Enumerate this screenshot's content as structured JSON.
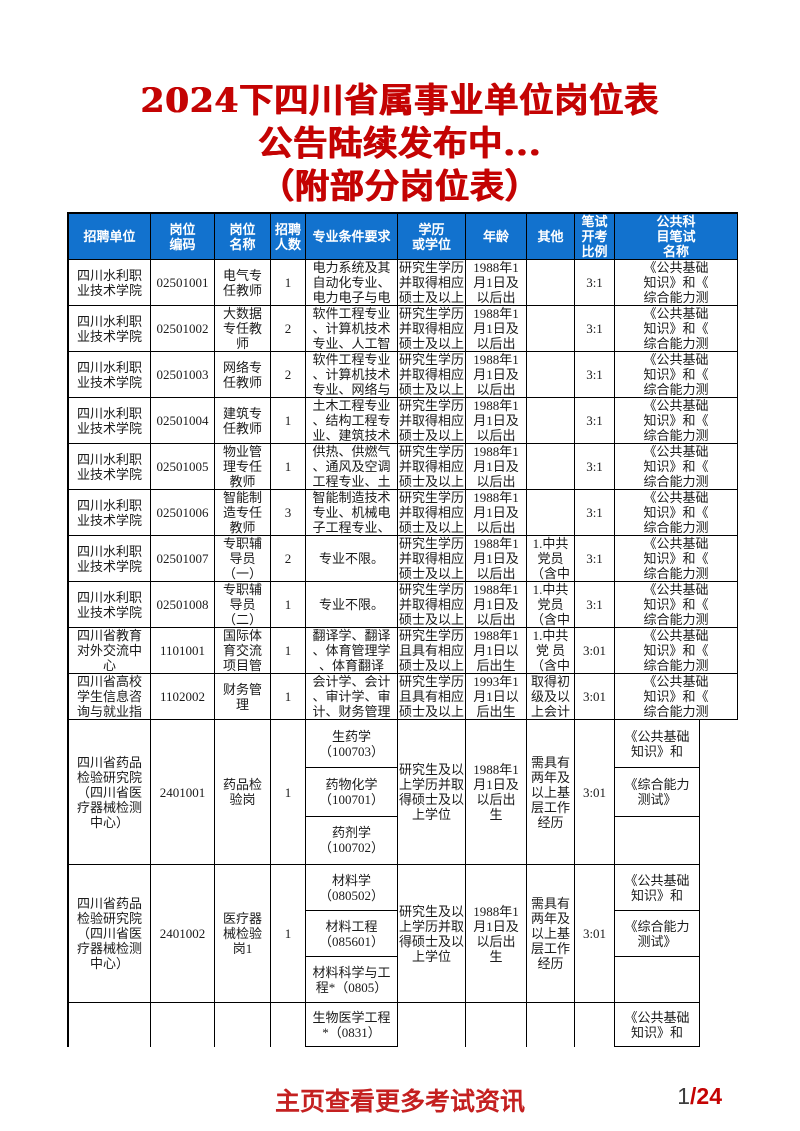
{
  "title": {
    "line1": "2024下四川省属事业单位岗位表",
    "line2": "公告陆续发布中...",
    "line3": "（附部分岗位表）"
  },
  "footer": {
    "text": "主页查看更多考试资讯",
    "page_current": "1",
    "page_total": "/24"
  },
  "colors": {
    "header_blue": "#1272ce",
    "title_red": "#c40303",
    "footer_red": "#c42020",
    "border_black": "#000000"
  },
  "table": {
    "headers": {
      "unit": "招聘单位",
      "code": "岗位\n编码",
      "name": "岗位\n名称",
      "count": "招聘\n人数",
      "major": "专业条件要求",
      "edu": "学历\n或学位",
      "age": "年龄",
      "other": "其他",
      "ratio": "笔试\n开考\n比例",
      "exam": "公共科\n目笔试\n名称"
    },
    "rows": [
      {
        "unit": "四川水利职\n业技术学院",
        "code": "02501001",
        "name": "电气专\n任教师",
        "count": "1",
        "major": "电力系统及其\n自动化专业、\n电力电子与电",
        "edu": "研究生学历\n并取得相应\n硕士及以上",
        "age": "1988年1\n月1日及\n以后出",
        "other": "",
        "ratio": "3:1",
        "exam": "《公共基础\n知识》和《\n综合能力测"
      },
      {
        "unit": "四川水利职\n业技术学院",
        "code": "02501002",
        "name": "大数据\n专任教\n师",
        "count": "2",
        "major": "软件工程专业\n、计算机技术\n专业、人工智",
        "edu": "研究生学历\n并取得相应\n硕士及以上",
        "age": "1988年1\n月1日及\n以后出",
        "other": "",
        "ratio": "3:1",
        "exam": "《公共基础\n知识》和《\n综合能力测"
      },
      {
        "unit": "四川水利职\n业技术学院",
        "code": "02501003",
        "name": "网络专\n任教师",
        "count": "2",
        "major": "软件工程专业\n、计算机技术\n专业、网络与",
        "edu": "研究生学历\n并取得相应\n硕士及以上",
        "age": "1988年1\n月1日及\n以后出",
        "other": "",
        "ratio": "3:1",
        "exam": "《公共基础\n知识》和《\n综合能力测"
      },
      {
        "unit": "四川水利职\n业技术学院",
        "code": "02501004",
        "name": "建筑专\n任教师",
        "count": "1",
        "major": "土木工程专业\n、结构工程专\n业、建筑技术",
        "edu": "研究生学历\n并取得相应\n硕士及以上",
        "age": "1988年1\n月1日及\n以后出",
        "other": "",
        "ratio": "3:1",
        "exam": "《公共基础\n知识》和《\n综合能力测"
      },
      {
        "unit": "四川水利职\n业技术学院",
        "code": "02501005",
        "name": "物业管\n理专任\n教师",
        "count": "1",
        "major": "供热、供燃气\n、通风及空调\n工程专业、土",
        "edu": "研究生学历\n并取得相应\n硕士及以上",
        "age": "1988年1\n月1日及\n以后出",
        "other": "",
        "ratio": "3:1",
        "exam": "《公共基础\n知识》和《\n综合能力测"
      },
      {
        "unit": "四川水利职\n业技术学院",
        "code": "02501006",
        "name": "智能制\n造专任\n教师",
        "count": "3",
        "major": "智能制造技术\n专业、机械电\n子工程专业、",
        "edu": "研究生学历\n并取得相应\n硕士及以上",
        "age": "1988年1\n月1日及\n以后出",
        "other": "",
        "ratio": "3:1",
        "exam": "《公共基础\n知识》和《\n综合能力测"
      },
      {
        "unit": "四川水利职\n业技术学院",
        "code": "02501007",
        "name": "专职辅\n导员\n（一）",
        "count": "2",
        "major": "专业不限。",
        "edu": "研究生学历\n并取得相应\n硕士及以上",
        "age": "1988年1\n月1日及\n以后出",
        "other": "1.中共\n党员\n（含中",
        "ratio": "3:1",
        "exam": "《公共基础\n知识》和《\n综合能力测"
      },
      {
        "unit": "四川水利职\n业技术学院",
        "code": "02501008",
        "name": "专职辅\n导员\n（二）",
        "count": "1",
        "major": "专业不限。",
        "edu": "研究生学历\n并取得相应\n硕士及以上",
        "age": "1988年1\n月1日及\n以后出",
        "other": "1.中共\n党员\n（含中",
        "ratio": "3:1",
        "exam": "《公共基础\n知识》和《\n综合能力测"
      },
      {
        "unit": "四川省教育\n对外交流中\n心",
        "code": "1101001",
        "name": "国际体\n育交流\n项目管",
        "count": "1",
        "major": "翻译学、翻译\n、体育管理学\n、体育翻译",
        "edu": "研究生学历\n且具有相应\n硕士及以上",
        "age": "1988年1\n月1日以\n后出生",
        "other": "1.中共\n党 员\n（含中",
        "ratio": "3:01",
        "exam": "《公共基础\n知识》和《\n综合能力测"
      },
      {
        "unit": "四川省高校\n学生信息咨\n询与就业指",
        "code": "1102002",
        "name": "财务管\n理",
        "count": "1",
        "major": "会计学、会计\n、审计学、审\n计、财务管理",
        "edu": "研究生学历\n且具有相应\n硕士及以上",
        "age": "1993年1\n月1日以\n后出生",
        "other": "取得初\n级及以\n上会计",
        "ratio": "3:01",
        "exam": "《公共基础\n知识》和《\n综合能力测"
      }
    ],
    "big_rows": [
      {
        "unit": "四川省药品\n检验研究院\n（四川省医\n疗器械检测\n中心）",
        "code": "2401001",
        "name": "药品检\n验岗",
        "count": "1",
        "majors": [
          "生药学\n（100703）",
          "药物化学\n（100701）",
          "药剂学\n（100702）"
        ],
        "edu": "研究生及以\n上学历并取\n得硕士及以\n上学位",
        "age": "1988年1\n月1日及\n以后出\n生",
        "other": "需具有\n两年及\n以上基\n层工作\n经历",
        "ratio": "3:01",
        "exams": [
          "《公共基础\n知识》和",
          "《综合能力\n测试》",
          ""
        ]
      },
      {
        "unit": "四川省药品\n检验研究院\n（四川省医\n疗器械检测\n中心）",
        "code": "2401002",
        "name": "医疗器\n械检验\n岗1",
        "count": "1",
        "majors": [
          "材料学\n（080502）",
          "材料工程\n（085601）",
          "材料科学与工\n程*（0805）"
        ],
        "edu": "研究生及以\n上学历并取\n得硕士及以\n上学位",
        "age": "1988年1\n月1日及\n以后出\n生",
        "other": "需具有\n两年及\n以上基\n层工作\n经历",
        "ratio": "3:01",
        "exams": [
          "《公共基础\n知识》和",
          "《综合能力\n测试》",
          ""
        ]
      }
    ],
    "partial_row": {
      "major": "生物医学工程\n*（0831）",
      "exam": "《公共基础\n知识》和"
    }
  }
}
